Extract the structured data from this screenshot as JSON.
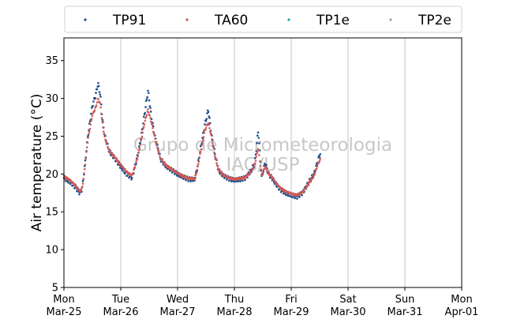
{
  "watermark": {
    "line1": "Grupo de Micrometeorologia",
    "line2": "IAG/USP"
  },
  "chart_data": {
    "type": "scatter",
    "title": "",
    "xlabel": "",
    "ylabel": "Air temperature (°C)",
    "xlim": [
      0,
      7
    ],
    "ylim": [
      5,
      38
    ],
    "grid": "vertical",
    "legend_placement": "top",
    "xticks": [
      {
        "x": 0,
        "day": "Mon",
        "date": "Mar-25"
      },
      {
        "x": 1,
        "day": "Tue",
        "date": "Mar-26"
      },
      {
        "x": 2,
        "day": "Wed",
        "date": "Mar-27"
      },
      {
        "x": 3,
        "day": "Thu",
        "date": "Mar-28"
      },
      {
        "x": 4,
        "day": "Fri",
        "date": "Mar-29"
      },
      {
        "x": 5,
        "day": "Sat",
        "date": "Mar-30"
      },
      {
        "x": 6,
        "day": "Sun",
        "date": "Mar-31"
      },
      {
        "x": 7,
        "day": "Mon",
        "date": "Apr-01"
      }
    ],
    "yticks": [
      5,
      10,
      15,
      20,
      25,
      30,
      35
    ],
    "series": [
      {
        "name": "TP91",
        "color": "#1f4e8c",
        "x": [
          0,
          0.1,
          0.2,
          0.25,
          0.28,
          0.32,
          0.36,
          0.42,
          0.5,
          0.56,
          0.6,
          0.64,
          0.68,
          0.72,
          0.8,
          0.9,
          1.0,
          1.1,
          1.2,
          1.25,
          1.3,
          1.36,
          1.42,
          1.48,
          1.54,
          1.6,
          1.7,
          1.8,
          1.9,
          2.0,
          2.1,
          2.2,
          2.3,
          2.34,
          2.42,
          2.48,
          2.54,
          2.6,
          2.66,
          2.72,
          2.8,
          2.9,
          3.0,
          3.1,
          3.2,
          3.3,
          3.36,
          3.42,
          3.48,
          3.54,
          3.6,
          3.66,
          3.72,
          3.8,
          3.9,
          4.0,
          4.1,
          4.2,
          4.3,
          4.4,
          4.48,
          4.52
        ],
        "y": [
          19.5,
          19.0,
          18.3,
          17.8,
          17.5,
          18.0,
          20.5,
          25.0,
          29.0,
          30.5,
          32.0,
          30.5,
          27.0,
          25.0,
          23.0,
          22.0,
          21.0,
          20.0,
          19.5,
          21.0,
          22.5,
          25.0,
          28.0,
          31.0,
          27.5,
          25.0,
          22.0,
          21.0,
          20.5,
          20.0,
          19.6,
          19.3,
          19.3,
          20.5,
          24.0,
          26.5,
          28.5,
          25.0,
          22.5,
          20.5,
          19.8,
          19.4,
          19.2,
          19.3,
          19.5,
          20.5,
          21.5,
          25.8,
          19.5,
          21.5,
          20.0,
          19.5,
          18.8,
          18.0,
          17.5,
          17.2,
          17.0,
          17.5,
          18.8,
          20.0,
          22.0,
          23.0
        ]
      },
      {
        "name": "TA60",
        "color": "#d05a55",
        "x": [
          0,
          0.1,
          0.2,
          0.25,
          0.28,
          0.32,
          0.36,
          0.42,
          0.5,
          0.56,
          0.6,
          0.64,
          0.68,
          0.72,
          0.8,
          0.9,
          1.0,
          1.1,
          1.2,
          1.25,
          1.3,
          1.36,
          1.42,
          1.48,
          1.54,
          1.6,
          1.7,
          1.8,
          1.9,
          2.0,
          2.1,
          2.2,
          2.3,
          2.34,
          2.42,
          2.48,
          2.54,
          2.6,
          2.66,
          2.72,
          2.8,
          2.9,
          3.0,
          3.1,
          3.2,
          3.3,
          3.36,
          3.42,
          3.48,
          3.54,
          3.6,
          3.66,
          3.72,
          3.8,
          3.9,
          4.0,
          4.1,
          4.2,
          4.3,
          4.4,
          4.48,
          4.52
        ],
        "y": [
          19.7,
          19.2,
          18.5,
          18.0,
          17.7,
          18.1,
          20.3,
          24.5,
          27.8,
          28.8,
          30.0,
          29.2,
          26.5,
          24.8,
          23.0,
          22.2,
          21.2,
          20.3,
          19.8,
          21.0,
          22.3,
          24.5,
          26.8,
          28.5,
          26.8,
          24.8,
          22.0,
          21.1,
          20.6,
          20.1,
          19.7,
          19.4,
          19.4,
          20.4,
          23.5,
          25.8,
          26.8,
          24.8,
          22.3,
          20.6,
          19.9,
          19.5,
          19.3,
          19.4,
          19.6,
          20.4,
          21.3,
          23.5,
          19.8,
          21.0,
          20.1,
          19.6,
          18.9,
          18.2,
          17.7,
          17.4,
          17.2,
          17.6,
          18.7,
          19.8,
          21.5,
          22.0
        ]
      },
      {
        "name": "TP1e",
        "color": "#2ca6a4",
        "x": [],
        "y": []
      },
      {
        "name": "TP2e",
        "color": "#a0a0a0",
        "x": [],
        "y": []
      }
    ]
  }
}
